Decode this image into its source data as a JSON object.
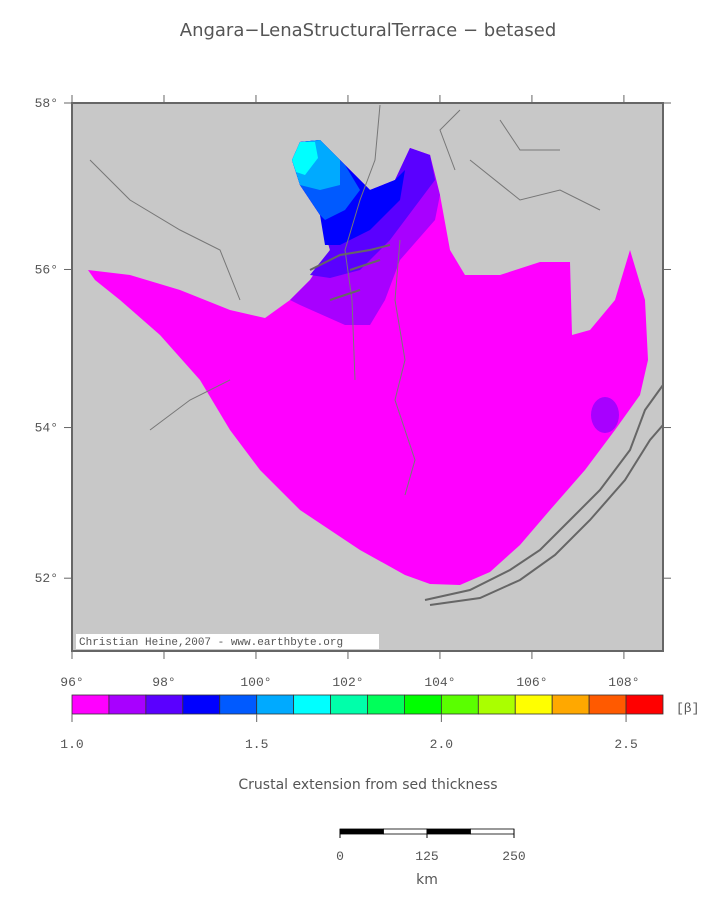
{
  "title": "Angara−LenaStructuralTerrace − betased",
  "map": {
    "xlim": [
      96,
      108.85
    ],
    "ylim": [
      51,
      58
    ],
    "lon_ticks": [
      {
        "value": 96,
        "label": "96°"
      },
      {
        "value": 98,
        "label": "98°"
      },
      {
        "value": 100,
        "label": "100°"
      },
      {
        "value": 102,
        "label": "102°"
      },
      {
        "value": 104,
        "label": "104°"
      },
      {
        "value": 106,
        "label": "106°"
      },
      {
        "value": 108,
        "label": "108°"
      }
    ],
    "lat_ticks": [
      {
        "value": 52,
        "label": "52°"
      },
      {
        "value": 54,
        "label": "54°"
      },
      {
        "value": 56,
        "label": "56°"
      },
      {
        "value": 58,
        "label": "58°"
      }
    ],
    "credit": "Christian Heine,2007 - www.earthbyte.org"
  },
  "colorbar": {
    "xlim": [
      1,
      2.6
    ],
    "colors": [
      "#ff00ff",
      "#a800ff",
      "#5a00ff",
      "#0000ff",
      "#005aff",
      "#00aaff",
      "#00ffff",
      "#00ffaa",
      "#00ff5a",
      "#00ff00",
      "#5aff00",
      "#aaff00",
      "#ffff00",
      "#ffa800",
      "#ff5a00",
      "#ff0000"
    ],
    "ticks": [
      {
        "value": 1,
        "label": "1.0"
      },
      {
        "value": 1.5,
        "label": "1.5"
      },
      {
        "value": 2,
        "label": "2.0"
      },
      {
        "value": 2.5,
        "label": "2.5"
      }
    ],
    "unit_label": "[β]",
    "caption": "Crustal extension from sed thickness"
  },
  "scale_bar": {
    "ticks": [
      0,
      125,
      250
    ],
    "unit": "km"
  }
}
